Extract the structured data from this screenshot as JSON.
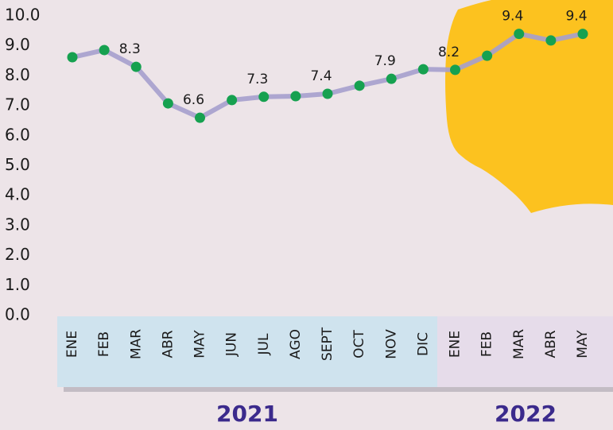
{
  "chart_data": {
    "type": "line",
    "categories": [
      "ENE",
      "FEB",
      "MAR",
      "ABR",
      "MAY",
      "JUN",
      "JUL",
      "AGO",
      "SEPT",
      "OCT",
      "NOV",
      "DIC",
      "ENE",
      "FEB",
      "MAR",
      "ABR",
      "MAY"
    ],
    "series": [
      {
        "color": "#a59fcd",
        "marker_color": "#16a150",
        "values": [
          8.62,
          8.86,
          8.3,
          7.08,
          6.6,
          7.19,
          7.3,
          7.32,
          7.4,
          7.67,
          7.9,
          8.22,
          8.2,
          8.67,
          9.4,
          9.18,
          9.4
        ],
        "value_labels": [
          null,
          null,
          "8.3",
          null,
          "6.6",
          null,
          "7.3",
          null,
          "7.4",
          null,
          "7.9",
          null,
          "8.2",
          null,
          "9.4",
          null,
          "9.4"
        ]
      }
    ],
    "years": [
      "2021",
      "2022"
    ],
    "ylim": [
      0,
      10
    ],
    "yticks": [
      {
        "value": 0,
        "label": "0.0"
      },
      {
        "value": 1,
        "label": "1.0"
      },
      {
        "value": 2,
        "label": "2.0"
      },
      {
        "value": 3,
        "label": "3.0"
      },
      {
        "value": 4,
        "label": "4.0"
      },
      {
        "value": 5,
        "label": "5.0"
      },
      {
        "value": 6,
        "label": "6.0"
      },
      {
        "value": 7,
        "label": "7.0"
      },
      {
        "value": 8,
        "label": "8.0"
      },
      {
        "value": 9,
        "label": "9.0"
      },
      {
        "value": 10,
        "label": "10.0"
      }
    ],
    "grid": false
  }
}
